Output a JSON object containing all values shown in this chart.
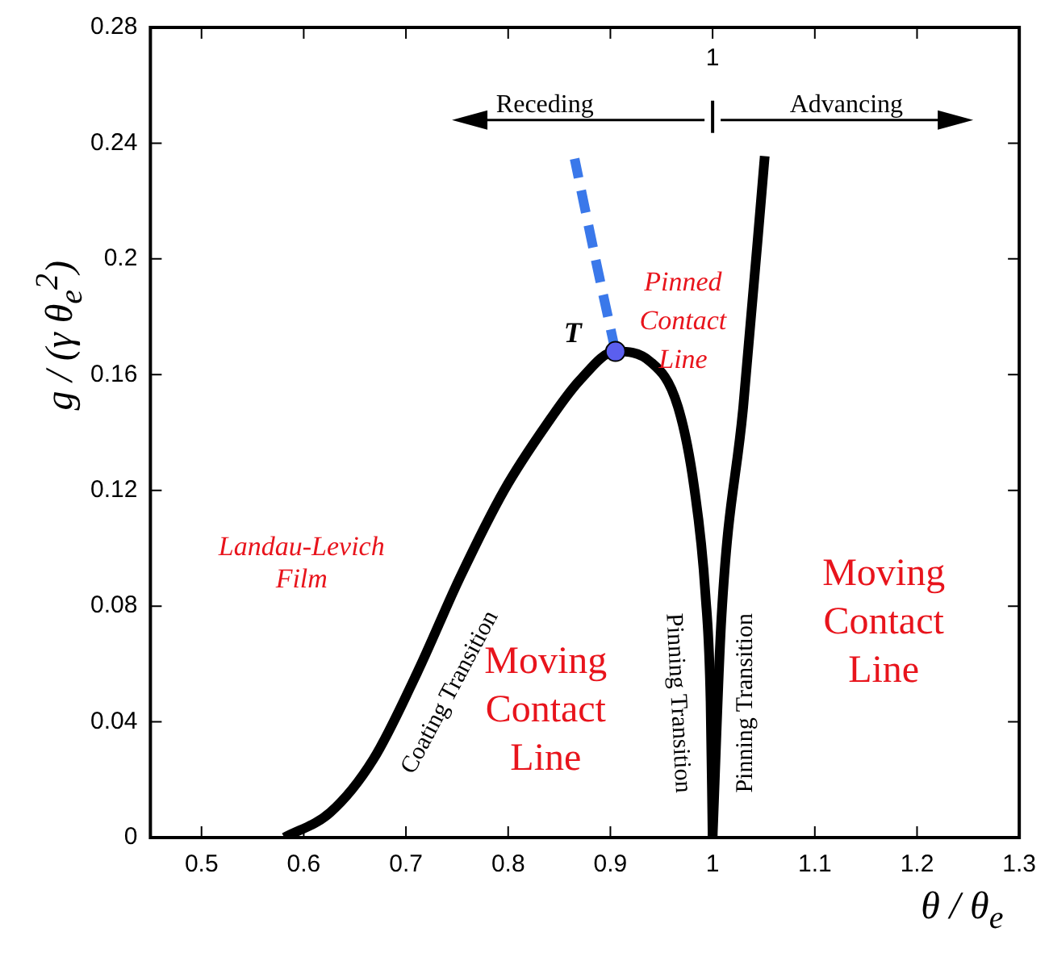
{
  "chart_data": {
    "type": "line",
    "xlabel": "θ / θ$_{e}$",
    "ylabel": "g / (γ θ$_{e}$$^{2}$)",
    "xlim": [
      0.45,
      1.3
    ],
    "xticks": [
      0.5,
      0.6,
      0.7,
      0.8,
      0.9,
      1,
      1.1,
      1.2,
      1.3
    ],
    "ylim": [
      0,
      0.28
    ],
    "yticks": [
      0,
      0.04,
      0.08,
      0.12,
      0.16,
      0.2,
      0.24,
      0.28
    ],
    "grid": false,
    "legend": false,
    "marker": "none",
    "line_style": "solid",
    "series": [
      {
        "color": "#000000",
        "x": [
          0.581,
          0.626,
          0.668,
          0.711,
          0.753,
          0.796,
          0.838,
          0.87,
          0.905,
          0.939,
          0.966,
          0.982,
          0.993,
          0.998,
          1.0
        ],
        "values": [
          0,
          0.0087,
          0.027,
          0.057,
          0.09,
          0.12,
          0.143,
          0.158,
          0.168,
          0.1645,
          0.149,
          0.121,
          0.084,
          0.047,
          0
        ]
      },
      {
        "color": "#000000",
        "x": [
          1.0,
          1.0085,
          1.03,
          1.051
        ],
        "values": [
          0,
          0.075,
          0.149,
          0.2355
        ]
      },
      {
        "color": "#3a78ea",
        "line_style": "dashed",
        "x": [
          0.905,
          0.886,
          0.865
        ],
        "values": [
          0.168,
          0.199,
          0.2346
        ]
      },
      {
        "type": "scatter",
        "marker": "circle",
        "color": "#5b5fef",
        "x": [
          0.905
        ],
        "values": [
          0.168
        ]
      }
    ],
    "annotations": [
      "1",
      "Receding",
      "Advancing",
      "T",
      "Pinned Contact Line",
      "Landau-Levich Film",
      "Moving Contact Line",
      "Moving Contact Line",
      "Coating Transition",
      "Pinning Transition",
      "Pinning Transition"
    ]
  }
}
